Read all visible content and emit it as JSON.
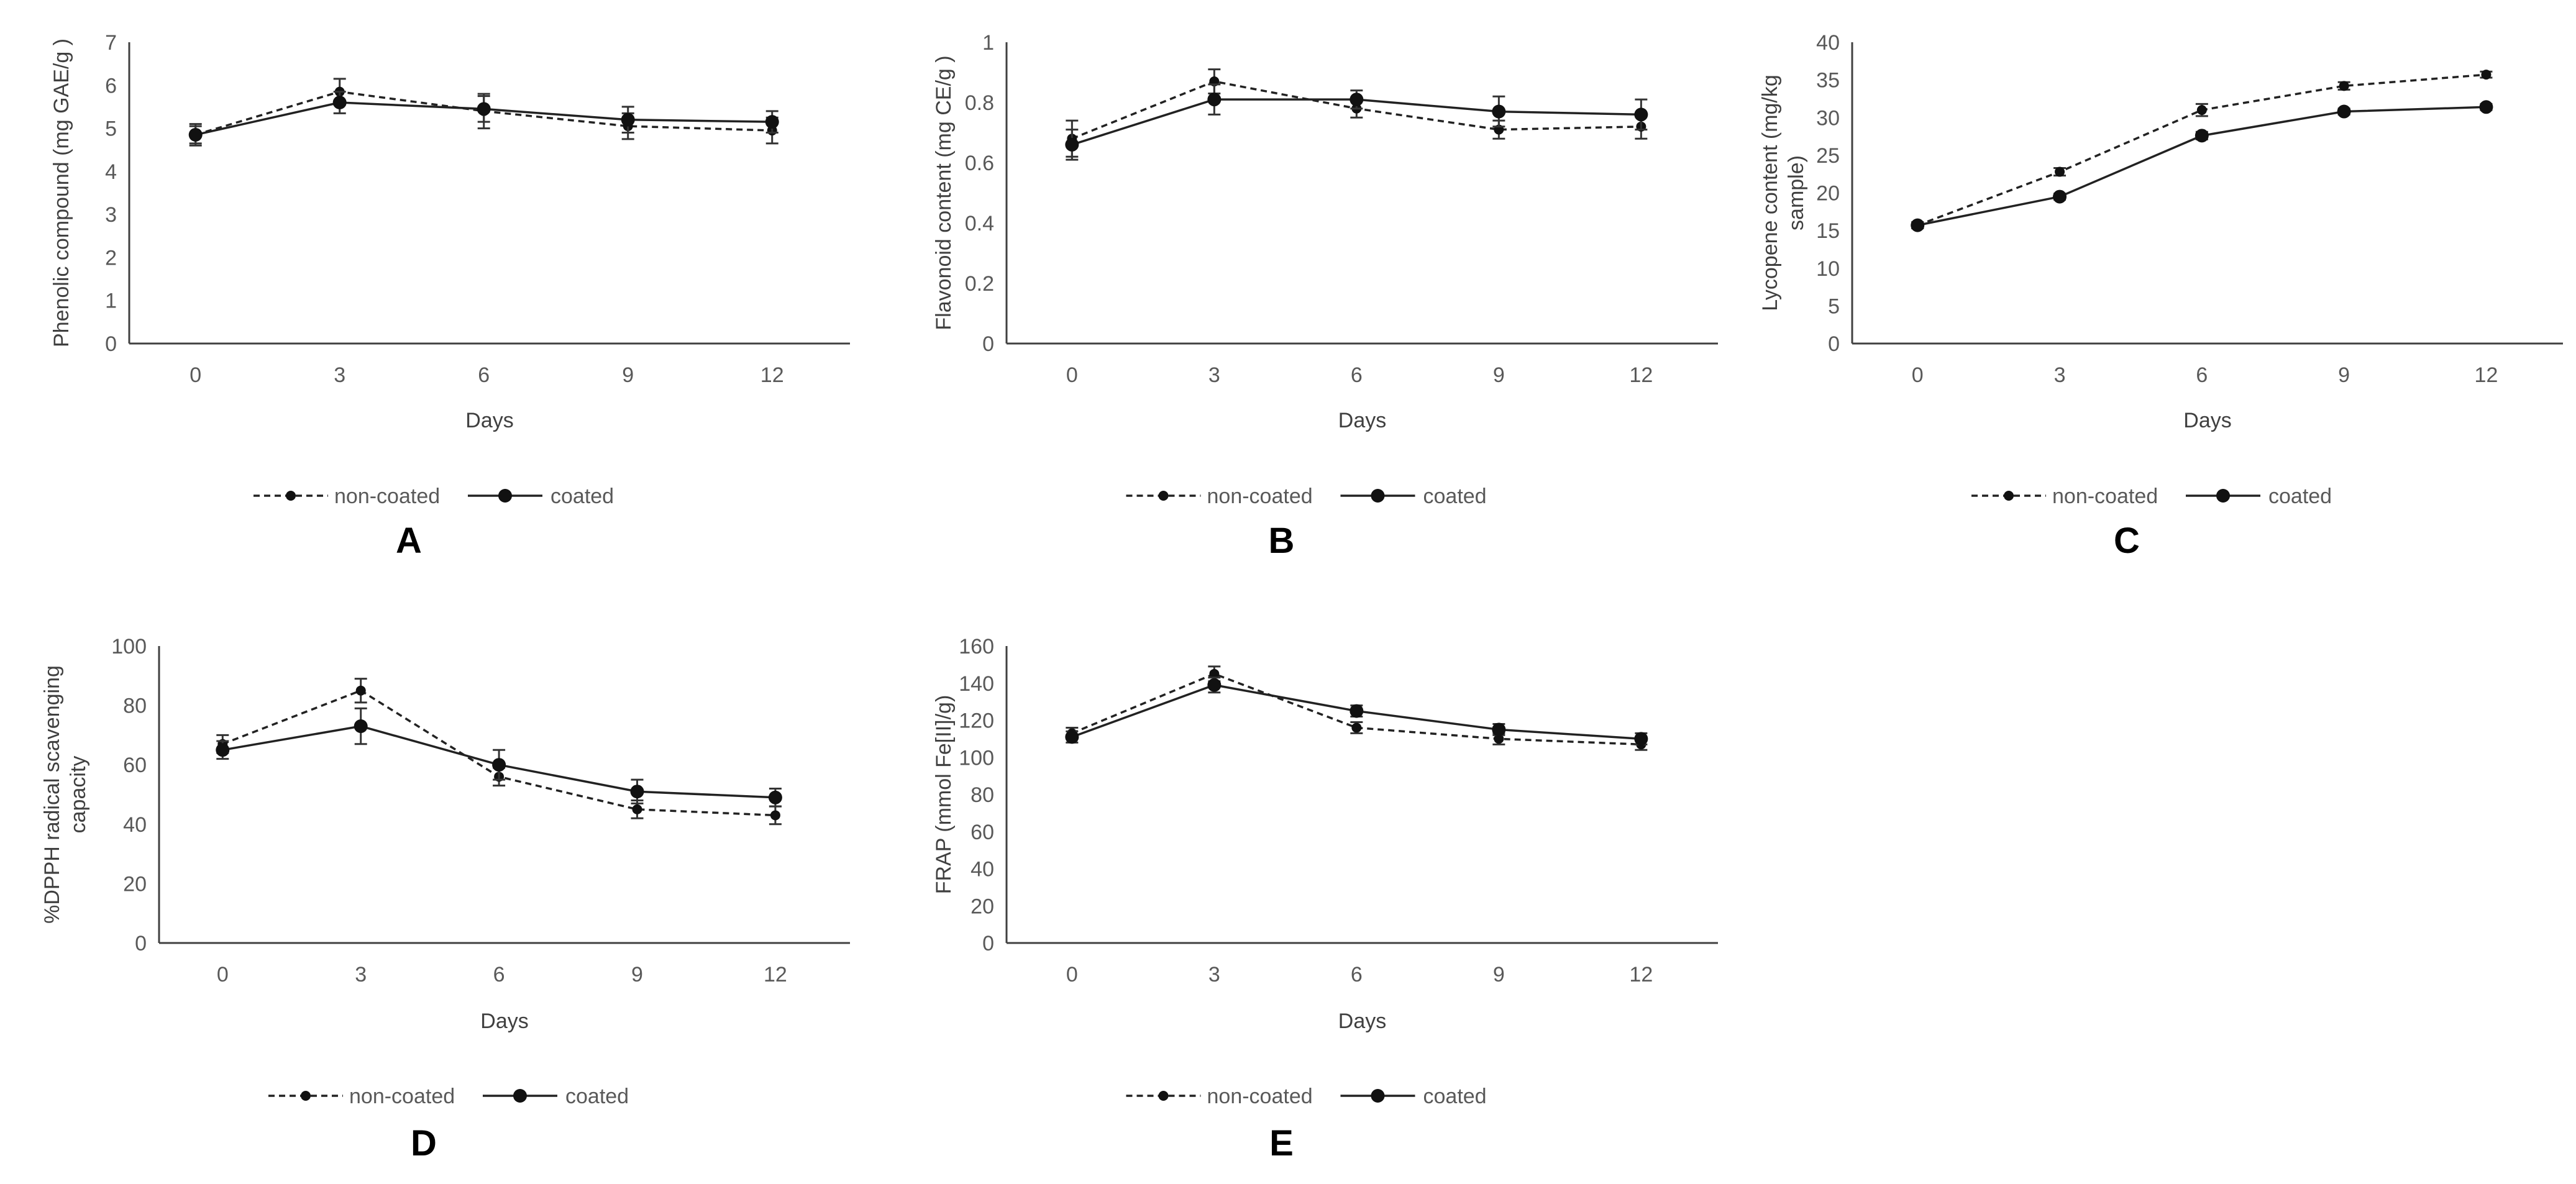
{
  "chart_data": [
    {
      "id": "A",
      "type": "line",
      "panel_letter": "A",
      "ylabel": "Phenolic compound (mg GAE/g  )",
      "xlabel": "Days",
      "categories": [
        "0",
        "3",
        "6",
        "9",
        "12"
      ],
      "ylim": [
        0,
        7
      ],
      "yticks": [
        0,
        1,
        2,
        3,
        4,
        5,
        6,
        7
      ],
      "series": [
        {
          "name": "non-coated",
          "style": "dashed",
          "values": [
            4.85,
            5.85,
            5.4,
            5.05,
            4.95
          ],
          "errors": [
            0.25,
            0.3,
            0.4,
            0.3,
            0.3
          ]
        },
        {
          "name": "coated",
          "style": "solid",
          "values": [
            4.85,
            5.6,
            5.45,
            5.2,
            5.15
          ],
          "errors": [
            0.2,
            0.25,
            0.3,
            0.3,
            0.25
          ]
        }
      ]
    },
    {
      "id": "B",
      "type": "line",
      "panel_letter": "B",
      "ylabel": "Flavonoid content (mg  CE/g  )",
      "xlabel": "Days",
      "categories": [
        "0",
        "3",
        "6",
        "9",
        "12"
      ],
      "ylim": [
        0,
        1
      ],
      "yticks": [
        0,
        0.2,
        0.4,
        0.6,
        0.8,
        1
      ],
      "series": [
        {
          "name": "non-coated",
          "style": "dashed",
          "values": [
            0.68,
            0.87,
            0.78,
            0.71,
            0.72
          ],
          "errors": [
            0.06,
            0.04,
            0.03,
            0.03,
            0.04
          ]
        },
        {
          "name": "coated",
          "style": "solid",
          "values": [
            0.66,
            0.81,
            0.81,
            0.77,
            0.76
          ],
          "errors": [
            0.05,
            0.05,
            0.03,
            0.05,
            0.05
          ]
        }
      ]
    },
    {
      "id": "C",
      "type": "line",
      "panel_letter": "C",
      "ylabel": "Lycopene  content (mg/kg sample)",
      "ylabel_lines": [
        "Lycopene  content (mg/kg",
        "sample)"
      ],
      "xlabel": "Days",
      "categories": [
        "0",
        "3",
        "6",
        "9",
        "12"
      ],
      "ylim": [
        0,
        40
      ],
      "yticks": [
        0,
        5,
        10,
        15,
        20,
        25,
        30,
        35,
        40
      ],
      "series": [
        {
          "name": "non-coated",
          "style": "dashed",
          "values": [
            15.7,
            22.8,
            31.0,
            34.2,
            35.7
          ],
          "errors": [
            0.4,
            0.5,
            0.8,
            0.5,
            0.4
          ]
        },
        {
          "name": "coated",
          "style": "solid",
          "values": [
            15.7,
            19.5,
            27.6,
            30.8,
            31.4
          ],
          "errors": [
            0.4,
            0.4,
            0.5,
            0.4,
            0.4
          ]
        }
      ]
    },
    {
      "id": "D",
      "type": "line",
      "panel_letter": "D",
      "ylabel": "%DPPH radical scavenging capacity",
      "ylabel_lines": [
        "%DPPH radical scavenging",
        "capacity"
      ],
      "xlabel": "Days",
      "categories": [
        "0",
        "3",
        "6",
        "9",
        "12"
      ],
      "ylim": [
        0,
        100
      ],
      "yticks": [
        0,
        20,
        40,
        60,
        80,
        100
      ],
      "series": [
        {
          "name": "non-coated",
          "style": "dashed",
          "values": [
            67,
            85,
            56,
            45,
            43
          ],
          "errors": [
            3,
            4,
            3,
            3,
            3
          ]
        },
        {
          "name": "coated",
          "style": "solid",
          "values": [
            65,
            73,
            60,
            51,
            49
          ],
          "errors": [
            3,
            6,
            5,
            4,
            3
          ]
        }
      ]
    },
    {
      "id": "E",
      "type": "line",
      "panel_letter": "E",
      "ylabel": "FRAP  (mmol Fe[II]/g)",
      "xlabel": "Days",
      "categories": [
        "0",
        "3",
        "6",
        "9",
        "12"
      ],
      "ylim": [
        0,
        160
      ],
      "yticks": [
        0,
        20,
        40,
        60,
        80,
        100,
        120,
        140,
        160
      ],
      "series": [
        {
          "name": "non-coated",
          "style": "dashed",
          "values": [
            113,
            145,
            116,
            110,
            107
          ],
          "errors": [
            3,
            4,
            3,
            3,
            3
          ]
        },
        {
          "name": "coated",
          "style": "solid",
          "values": [
            111,
            139,
            125,
            115,
            110
          ],
          "errors": [
            3,
            4,
            3,
            3,
            3
          ]
        }
      ]
    }
  ]
}
